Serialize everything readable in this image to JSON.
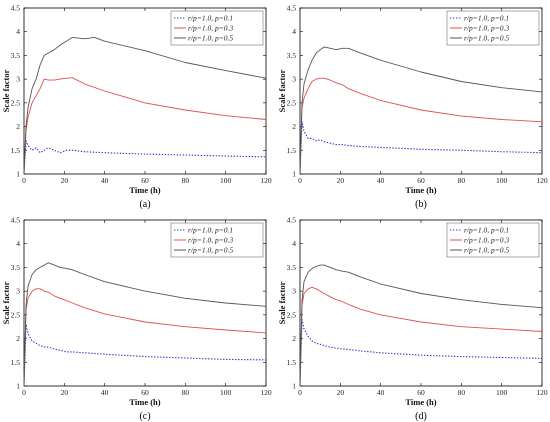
{
  "chart_data": [
    {
      "type": "line",
      "panel_label": "(a)",
      "xlabel": "Time (h)",
      "ylabel": "Scale factor",
      "xlim": [
        0,
        120
      ],
      "ylim": [
        1,
        4.5
      ],
      "xticks": [
        0,
        20,
        40,
        60,
        80,
        100,
        120
      ],
      "yticks": [
        1,
        1.5,
        2,
        2.5,
        3,
        3.5,
        4,
        4.5
      ],
      "grid": false,
      "legend_position": "top-right",
      "series": [
        {
          "name": "r/p=1.0, p=0.1",
          "color": "#3333cc",
          "dash": "dotted",
          "x": [
            0,
            1,
            2,
            4,
            6,
            8,
            10,
            12,
            15,
            18,
            21,
            24,
            30,
            40,
            60,
            80,
            100,
            120
          ],
          "y": [
            1.0,
            1.7,
            1.6,
            1.5,
            1.55,
            1.45,
            1.5,
            1.55,
            1.5,
            1.45,
            1.5,
            1.5,
            1.47,
            1.45,
            1.42,
            1.4,
            1.38,
            1.36
          ]
        },
        {
          "name": "r/p=1.0, p=0.3",
          "color": "#e05050",
          "dash": "solid",
          "x": [
            0,
            1,
            2,
            4,
            6,
            8,
            10,
            12,
            15,
            18,
            21,
            24,
            30,
            40,
            60,
            80,
            100,
            120
          ],
          "y": [
            1.0,
            1.9,
            2.2,
            2.5,
            2.65,
            2.8,
            3.0,
            2.98,
            2.98,
            3.0,
            3.02,
            3.03,
            2.9,
            2.75,
            2.5,
            2.35,
            2.23,
            2.15
          ]
        },
        {
          "name": "r/p=1.0, p=0.5",
          "color": "#555555",
          "dash": "solid",
          "x": [
            0,
            1,
            2,
            4,
            6,
            8,
            10,
            12,
            15,
            18,
            21,
            24,
            30,
            35,
            40,
            60,
            80,
            100,
            120
          ],
          "y": [
            1.0,
            2.0,
            2.4,
            2.8,
            3.0,
            3.3,
            3.5,
            3.55,
            3.62,
            3.72,
            3.8,
            3.88,
            3.85,
            3.88,
            3.8,
            3.6,
            3.35,
            3.18,
            3.02
          ]
        }
      ]
    },
    {
      "type": "line",
      "panel_label": "(b)",
      "xlabel": "Time (h)",
      "ylabel": "Scale factor",
      "xlim": [
        0,
        120
      ],
      "ylim": [
        1,
        4.5
      ],
      "xticks": [
        0,
        20,
        40,
        60,
        80,
        100,
        120
      ],
      "yticks": [
        1,
        1.5,
        2,
        2.5,
        3,
        3.5,
        4,
        4.5
      ],
      "grid": false,
      "legend_position": "top-right",
      "series": [
        {
          "name": "r/p=1.0, p=0.1",
          "color": "#3333cc",
          "dash": "dotted",
          "x": [
            0,
            1,
            2,
            4,
            6,
            8,
            10,
            12,
            15,
            18,
            21,
            24,
            30,
            40,
            60,
            80,
            100,
            120
          ],
          "y": [
            1.0,
            2.1,
            1.9,
            1.75,
            1.75,
            1.7,
            1.72,
            1.68,
            1.65,
            1.62,
            1.62,
            1.6,
            1.58,
            1.56,
            1.52,
            1.5,
            1.47,
            1.45
          ]
        },
        {
          "name": "r/p=1.0, p=0.3",
          "color": "#e05050",
          "dash": "solid",
          "x": [
            0,
            1,
            2,
            4,
            6,
            8,
            10,
            12,
            15,
            18,
            21,
            24,
            30,
            40,
            60,
            80,
            100,
            120
          ],
          "y": [
            1.0,
            2.4,
            2.6,
            2.8,
            2.95,
            3.0,
            3.02,
            3.02,
            2.98,
            2.92,
            2.88,
            2.8,
            2.7,
            2.55,
            2.35,
            2.22,
            2.15,
            2.1
          ]
        },
        {
          "name": "r/p=1.0, p=0.5",
          "color": "#555555",
          "dash": "solid",
          "x": [
            0,
            1,
            2,
            4,
            6,
            8,
            10,
            12,
            15,
            18,
            21,
            24,
            30,
            40,
            60,
            80,
            100,
            120
          ],
          "y": [
            1.0,
            2.5,
            2.9,
            3.2,
            3.4,
            3.55,
            3.62,
            3.68,
            3.65,
            3.62,
            3.65,
            3.65,
            3.55,
            3.4,
            3.15,
            2.95,
            2.82,
            2.73
          ]
        }
      ]
    },
    {
      "type": "line",
      "panel_label": "(c)",
      "xlabel": "Time (h)",
      "ylabel": "Scale factor",
      "xlim": [
        0,
        120
      ],
      "ylim": [
        1,
        4.5
      ],
      "xticks": [
        0,
        20,
        40,
        60,
        80,
        100,
        120
      ],
      "yticks": [
        1,
        1.5,
        2,
        2.5,
        3,
        3.5,
        4,
        4.5
      ],
      "grid": false,
      "legend_position": "top-right",
      "series": [
        {
          "name": "r/p=1.0, p=0.1",
          "color": "#3333cc",
          "dash": "dotted",
          "x": [
            0,
            1,
            2,
            4,
            6,
            8,
            10,
            12,
            15,
            18,
            21,
            24,
            30,
            40,
            60,
            80,
            100,
            120
          ],
          "y": [
            1.0,
            2.3,
            2.1,
            1.95,
            1.9,
            1.85,
            1.82,
            1.82,
            1.78,
            1.75,
            1.72,
            1.72,
            1.7,
            1.67,
            1.62,
            1.59,
            1.56,
            1.55
          ]
        },
        {
          "name": "r/p=1.0, p=0.3",
          "color": "#e05050",
          "dash": "solid",
          "x": [
            0,
            1,
            2,
            4,
            6,
            8,
            10,
            12,
            15,
            18,
            21,
            24,
            30,
            40,
            60,
            80,
            100,
            120
          ],
          "y": [
            1.0,
            2.6,
            2.85,
            3.0,
            3.05,
            3.05,
            3.0,
            2.98,
            2.9,
            2.85,
            2.8,
            2.75,
            2.65,
            2.52,
            2.35,
            2.25,
            2.18,
            2.12
          ]
        },
        {
          "name": "r/p=1.0, p=0.5",
          "color": "#555555",
          "dash": "solid",
          "x": [
            0,
            1,
            2,
            4,
            6,
            8,
            10,
            12,
            15,
            18,
            21,
            24,
            30,
            40,
            60,
            80,
            100,
            120
          ],
          "y": [
            1.0,
            2.7,
            3.1,
            3.35,
            3.45,
            3.5,
            3.55,
            3.6,
            3.55,
            3.5,
            3.48,
            3.45,
            3.35,
            3.2,
            3.0,
            2.85,
            2.75,
            2.68
          ]
        }
      ]
    },
    {
      "type": "line",
      "panel_label": "(d)",
      "xlabel": "Time (h)",
      "ylabel": "Scale factor",
      "xlim": [
        0,
        120
      ],
      "ylim": [
        1,
        4.5
      ],
      "xticks": [
        0,
        20,
        40,
        60,
        80,
        100,
        120
      ],
      "yticks": [
        1,
        1.5,
        2,
        2.5,
        3,
        3.5,
        4,
        4.5
      ],
      "grid": false,
      "legend_position": "top-right",
      "series": [
        {
          "name": "r/p=1.0, p=0.1",
          "color": "#3333cc",
          "dash": "dotted",
          "x": [
            0,
            1,
            2,
            4,
            6,
            8,
            10,
            12,
            15,
            18,
            21,
            24,
            30,
            40,
            60,
            80,
            100,
            120
          ],
          "y": [
            1.0,
            2.4,
            2.2,
            2.05,
            1.95,
            1.9,
            1.88,
            1.85,
            1.82,
            1.8,
            1.78,
            1.77,
            1.74,
            1.7,
            1.65,
            1.62,
            1.6,
            1.58
          ]
        },
        {
          "name": "r/p=1.0, p=0.3",
          "color": "#e05050",
          "dash": "solid",
          "x": [
            0,
            1,
            2,
            4,
            6,
            8,
            10,
            12,
            15,
            18,
            21,
            24,
            30,
            40,
            60,
            80,
            100,
            120
          ],
          "y": [
            1.0,
            2.7,
            2.95,
            3.05,
            3.08,
            3.05,
            3.0,
            2.95,
            2.88,
            2.82,
            2.78,
            2.72,
            2.62,
            2.5,
            2.35,
            2.25,
            2.2,
            2.15
          ]
        },
        {
          "name": "r/p=1.0, p=0.5",
          "color": "#555555",
          "dash": "solid",
          "x": [
            0,
            1,
            2,
            4,
            6,
            8,
            10,
            12,
            15,
            18,
            21,
            24,
            30,
            40,
            60,
            80,
            100,
            120
          ],
          "y": [
            1.0,
            2.8,
            3.2,
            3.4,
            3.48,
            3.52,
            3.55,
            3.55,
            3.5,
            3.45,
            3.42,
            3.4,
            3.3,
            3.15,
            2.95,
            2.82,
            2.72,
            2.65
          ]
        }
      ]
    }
  ]
}
